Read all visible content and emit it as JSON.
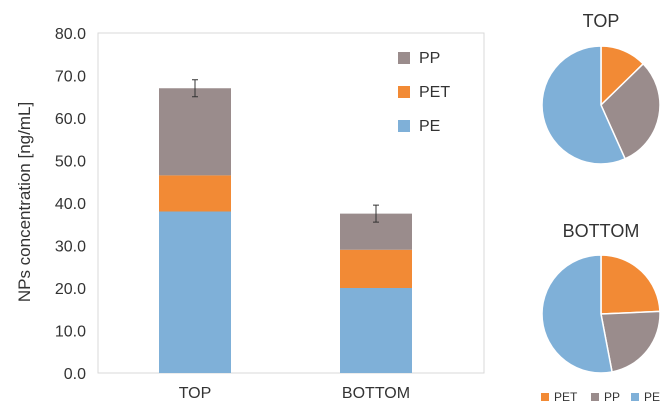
{
  "chart_data": [
    {
      "type": "bar",
      "stacked": true,
      "ylabel": "NPs concentration [ng/mL]",
      "ylim": [
        0,
        80
      ],
      "yticks": [
        "0.0",
        "10.0",
        "20.0",
        "30.0",
        "40.0",
        "50.0",
        "60.0",
        "70.0",
        "80.0"
      ],
      "categories": [
        "TOP",
        "BOTTOM"
      ],
      "series": [
        {
          "name": "PE",
          "values": [
            38,
            20
          ],
          "color": "#7fb0d8"
        },
        {
          "name": "PET",
          "values": [
            8.5,
            9
          ],
          "color": "#f28a35"
        },
        {
          "name": "PP",
          "values": [
            20.5,
            8.5
          ],
          "color": "#9a8c8c"
        }
      ],
      "error": [
        2,
        2
      ],
      "legend": {
        "placement": "top-right",
        "order": [
          "PP",
          "PET",
          "PE"
        ]
      },
      "grid": false
    },
    {
      "type": "pie",
      "title": "TOP",
      "slices": [
        {
          "name": "PET",
          "value": 12.7,
          "color": "#f28a35"
        },
        {
          "name": "PP",
          "value": 30.6,
          "color": "#9a8c8c"
        },
        {
          "name": "PE",
          "value": 56.7,
          "color": "#7fb0d8"
        }
      ]
    },
    {
      "type": "pie",
      "title": "BOTTOM",
      "slices": [
        {
          "name": "PET",
          "value": 24.3,
          "color": "#f28a35"
        },
        {
          "name": "PP",
          "value": 22.7,
          "color": "#9a8c8c"
        },
        {
          "name": "PE",
          "value": 53.0,
          "color": "#7fb0d8"
        }
      ]
    }
  ],
  "pie_legend": [
    {
      "name": "PET",
      "color": "#f28a35"
    },
    {
      "name": "PP",
      "color": "#9a8c8c"
    },
    {
      "name": "PE",
      "color": "#7fb0d8"
    }
  ]
}
